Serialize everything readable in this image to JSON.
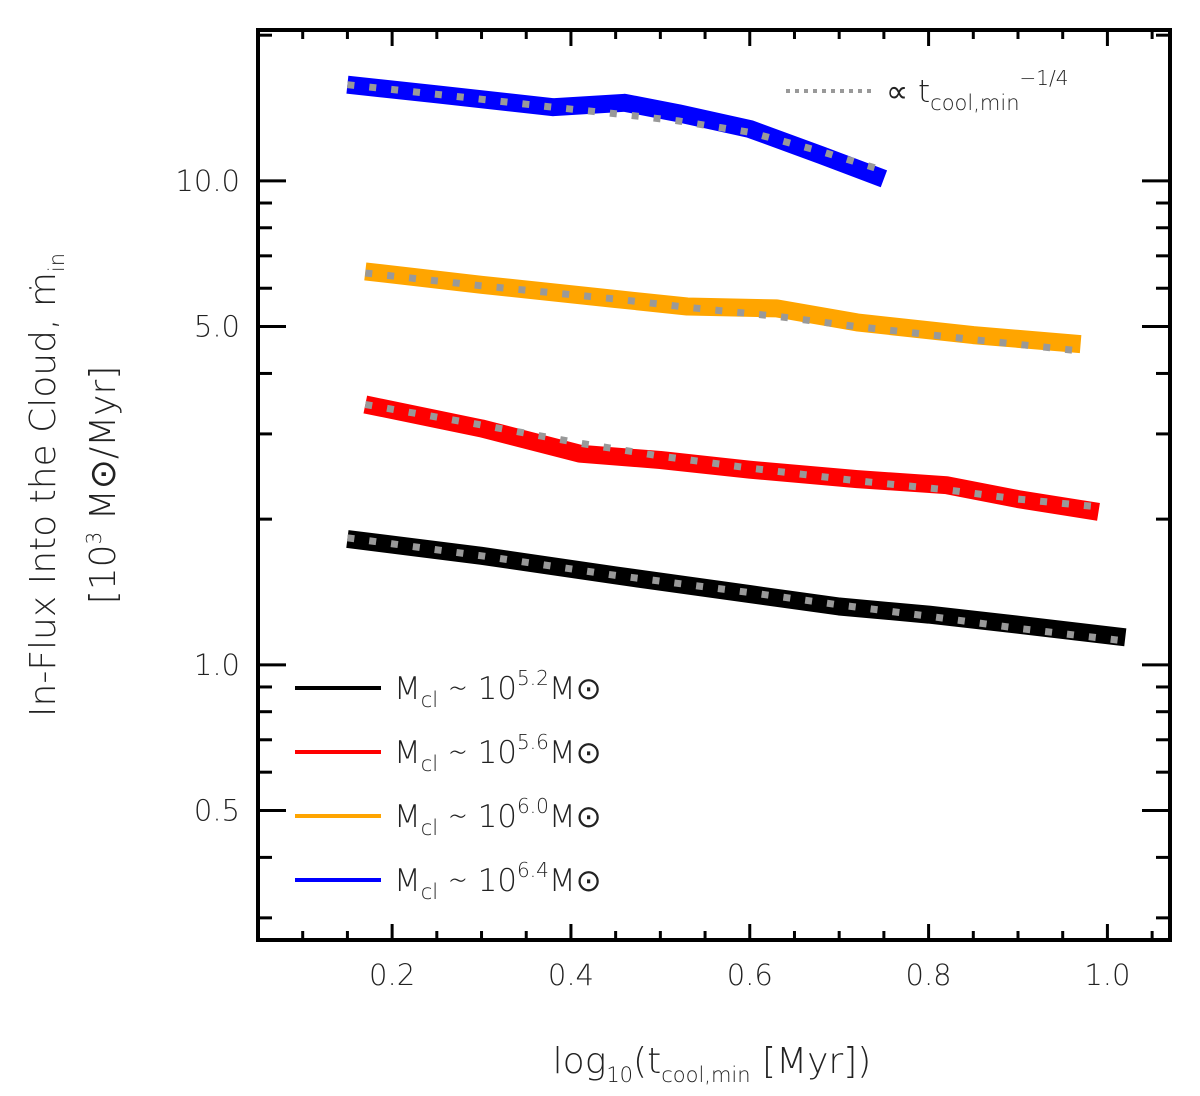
{
  "chart_data": {
    "type": "line",
    "title": "",
    "xlabel": {
      "pre": "log",
      "sub": "10",
      "mid": "(t",
      "sub2": "cool,min",
      "post": " [Myr])"
    },
    "ylabel_line1": {
      "pre": "In-Flux Into the Cloud, ",
      "mdot": "ṁ",
      "sub": "in"
    },
    "ylabel_line2": {
      "pre": "[10",
      "sup": "3",
      "post": " M",
      "sun": "⊙",
      "post2": "/Myr]"
    },
    "xlim": [
      0.05,
      1.07
    ],
    "ylim": [
      0.27,
      20.5
    ],
    "yscale": "log",
    "x_ticks": [
      0.2,
      0.4,
      0.6,
      0.8,
      1.0
    ],
    "x_tick_labels": [
      "0.2",
      "0.4",
      "0.6",
      "0.8",
      "1.0"
    ],
    "y_ticks": [
      0.5,
      1.0,
      5.0,
      10.0
    ],
    "y_tick_labels": [
      "0.5",
      "1.0",
      "5.0",
      "10.0"
    ],
    "series": [
      {
        "name": "Mcl ~ 10^5.2 Msun",
        "color": "#000000",
        "legend": {
          "m": "M",
          "msub": "cl",
          "sim": " ∼ 10",
          "exp": "5.2",
          "end": "M",
          "sun": "⊙"
        },
        "x": [
          0.15,
          0.3,
          0.45,
          0.6,
          0.7,
          0.8,
          0.9,
          1.02
        ],
        "y": [
          1.82,
          1.68,
          1.53,
          1.4,
          1.32,
          1.27,
          1.21,
          1.14
        ],
        "fit": [
          1.83,
          1.68,
          1.53,
          1.41,
          1.33,
          1.26,
          1.19,
          1.12
        ]
      },
      {
        "name": "Mcl ~ 10^5.6 Msun",
        "color": "#ff0000",
        "legend": {
          "m": "M",
          "msub": "cl",
          "sim": " ∼ 10",
          "exp": "5.6",
          "end": "M",
          "sun": "⊙"
        },
        "x": [
          0.17,
          0.3,
          0.41,
          0.5,
          0.6,
          0.72,
          0.82,
          0.9,
          0.99
        ],
        "y": [
          3.45,
          3.08,
          2.73,
          2.65,
          2.53,
          2.42,
          2.35,
          2.2,
          2.07
        ],
        "fit": [
          3.45,
          3.13,
          2.87,
          2.7,
          2.55,
          2.4,
          2.3,
          2.2,
          2.12
        ]
      },
      {
        "name": "Mcl ~ 10^6.0 Msun",
        "color": "#ffa500",
        "legend": {
          "m": "M",
          "msub": "cl",
          "sim": " ∼ 10",
          "exp": "6.0",
          "end": "M",
          "sun": "⊙"
        },
        "x": [
          0.17,
          0.3,
          0.45,
          0.53,
          0.63,
          0.72,
          0.85,
          0.97
        ],
        "y": [
          6.5,
          6.1,
          5.7,
          5.5,
          5.45,
          5.1,
          4.8,
          4.6
        ],
        "fit": [
          6.45,
          6.07,
          5.7,
          5.48,
          5.25,
          5.0,
          4.7,
          4.45
        ]
      },
      {
        "name": "Mcl ~ 10^6.4 Msun",
        "color": "#0000ff",
        "legend": {
          "m": "M",
          "msub": "cl",
          "sim": " ∼ 10",
          "exp": "6.4",
          "end": "M",
          "sun": "⊙"
        },
        "x": [
          0.15,
          0.25,
          0.38,
          0.46,
          0.52,
          0.6,
          0.68,
          0.75
        ],
        "y": [
          15.8,
          15.1,
          14.2,
          14.5,
          13.8,
          12.8,
          11.3,
          10.1
        ],
        "fit": [
          15.8,
          15.1,
          14.2,
          13.7,
          13.3,
          12.6,
          11.5,
          10.5
        ]
      }
    ],
    "annotation": {
      "prop": "∝ t",
      "sub": "cool,min",
      "sup": "−1/4"
    },
    "legend_position": "lower-left",
    "fit_line_color": "#999999"
  }
}
